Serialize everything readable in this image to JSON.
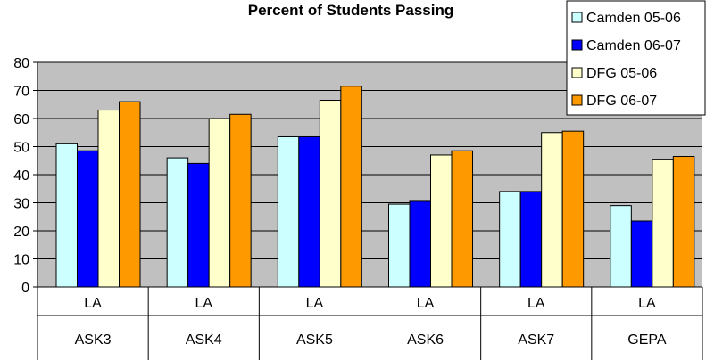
{
  "chart_data": {
    "type": "bar",
    "title": "Percent of Students Passing",
    "categories": [
      {
        "top": "LA",
        "bottom": "ASK3"
      },
      {
        "top": "LA",
        "bottom": "ASK4"
      },
      {
        "top": "LA",
        "bottom": "ASK5"
      },
      {
        "top": "LA",
        "bottom": "ASK6"
      },
      {
        "top": "LA",
        "bottom": "ASK7"
      },
      {
        "top": "LA",
        "bottom": "GEPA"
      }
    ],
    "series": [
      {
        "name": "Camden 05-06",
        "color": "#ccffff",
        "values": [
          51,
          46,
          53.5,
          29.5,
          34,
          29
        ]
      },
      {
        "name": "Camden 06-07",
        "color": "#0000ff",
        "values": [
          48.5,
          44,
          53.5,
          30.5,
          34,
          23.5
        ]
      },
      {
        "name": "DFG 05-06",
        "color": "#ffffcc",
        "values": [
          63,
          60,
          66.5,
          47,
          55,
          45.5
        ]
      },
      {
        "name": "DFG 06-07",
        "color": "#ff9900",
        "values": [
          66,
          61.5,
          71.5,
          48.5,
          55.5,
          46.5
        ]
      }
    ],
    "yticks": [
      0,
      10,
      20,
      30,
      40,
      50,
      60,
      70,
      80
    ],
    "ylim": [
      0,
      80
    ],
    "grid": true,
    "plot_background": "#c0c0c0",
    "legend_position": "top-right"
  }
}
